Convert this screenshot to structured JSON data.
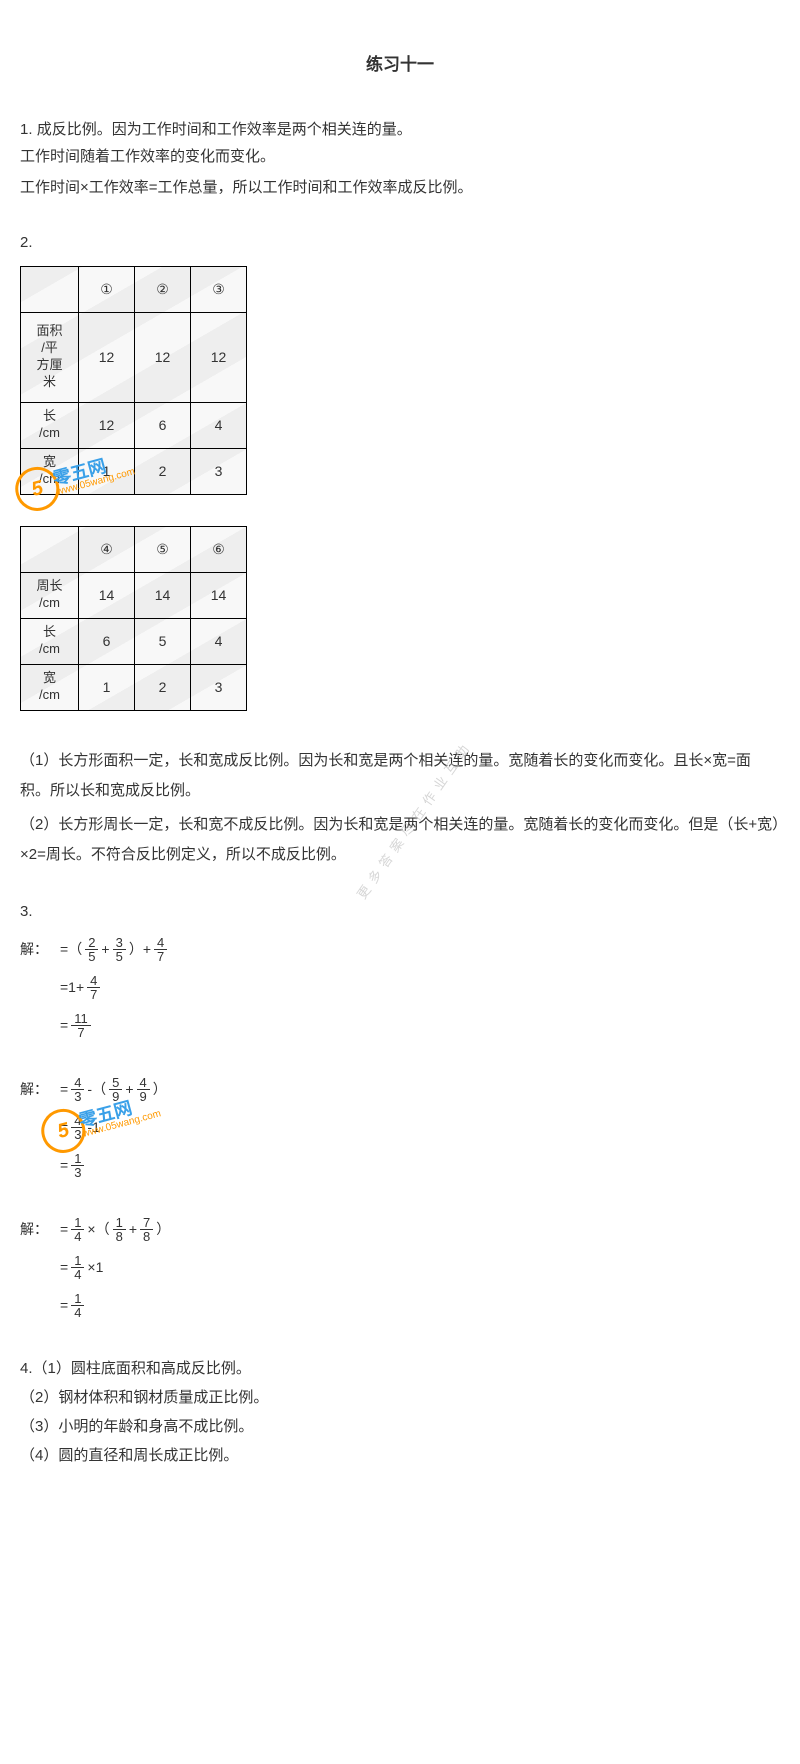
{
  "title": "练习十一",
  "q1": {
    "num": "1.",
    "lines": [
      "成反比例。因为工作时间和工作效率是两个相关连的量。",
      "工作时间随着工作效率的变化而变化。",
      "工作时间×工作效率=工作总量，所以工作时间和工作效率成反比例。"
    ]
  },
  "q2": {
    "num": "2.",
    "table1": {
      "colors": {
        "border": "#000000",
        "bg": "#f8f8f8"
      },
      "headers": [
        "",
        "①",
        "②",
        "③"
      ],
      "rows": [
        {
          "label": "面积/平方厘米",
          "cells": [
            "12",
            "12",
            "12"
          ],
          "tall": true
        },
        {
          "label": "长/cm",
          "cells": [
            "12",
            "6",
            "4"
          ]
        },
        {
          "label": "宽/cm",
          "cells": [
            "1",
            "2",
            "3"
          ]
        }
      ]
    },
    "table2": {
      "headers": [
        "",
        "④",
        "⑤",
        "⑥"
      ],
      "rows": [
        {
          "label": "周长/cm",
          "cells": [
            "14",
            "14",
            "14"
          ]
        },
        {
          "label": "长/cm",
          "cells": [
            "6",
            "5",
            "4"
          ]
        },
        {
          "label": "宽/cm",
          "cells": [
            "1",
            "2",
            "3"
          ]
        }
      ]
    },
    "expl": [
      "（1）长方形面积一定，长和宽成反比例。因为长和宽是两个相关连的量。宽随着长的变化而变化。且长×宽=面积。所以长和宽成反比例。",
      "（2）长方形周长一定，长和宽不成反比例。因为长和宽是两个相关连的量。宽随着长的变化而变化。但是（长+宽）×2=周长。不符合反比例定义，所以不成反比例。"
    ]
  },
  "q3": {
    "num": "3.",
    "solve_label": "解：",
    "eqs": [
      {
        "lines": [
          {
            "lead": "解：",
            "parts": [
              "=",
              "（",
              {
                "n": "2",
                "d": "5"
              },
              "+",
              {
                "n": "3",
                "d": "5"
              },
              "）",
              "+",
              {
                "n": "4",
                "d": "7"
              }
            ]
          },
          {
            "lead": "",
            "parts": [
              "=1+",
              {
                "n": "4",
                "d": "7"
              }
            ]
          },
          {
            "lead": "",
            "parts": [
              "=",
              {
                "n": "11",
                "d": "7"
              }
            ]
          }
        ]
      },
      {
        "lines": [
          {
            "lead": "解：",
            "parts": [
              "=",
              {
                "n": "4",
                "d": "3"
              },
              "-",
              "（",
              {
                "n": "5",
                "d": "9"
              },
              "+",
              {
                "n": "4",
                "d": "9"
              },
              "）"
            ]
          },
          {
            "lead": "",
            "parts": [
              "=",
              {
                "n": "4",
                "d": "3"
              },
              "-",
              "1"
            ]
          },
          {
            "lead": "",
            "parts": [
              "=",
              {
                "n": "1",
                "d": "3"
              }
            ]
          }
        ]
      },
      {
        "lines": [
          {
            "lead": "解：",
            "parts": [
              "=",
              {
                "n": "1",
                "d": "4"
              },
              "×",
              "（",
              {
                "n": "1",
                "d": "8"
              },
              "+",
              {
                "n": "7",
                "d": "8"
              },
              "）"
            ]
          },
          {
            "lead": "",
            "parts": [
              "=",
              {
                "n": "1",
                "d": "4"
              },
              "×",
              "1"
            ]
          },
          {
            "lead": "",
            "parts": [
              "=",
              {
                "n": "1",
                "d": "4"
              }
            ]
          }
        ]
      }
    ]
  },
  "q4": {
    "lines": [
      "4.（1）圆柱底面积和高成反比例。",
      "（2）钢材体积和钢材质量成正比例。",
      "（3）小明的年龄和身高不成比例。",
      "（4）圆的直径和周长成正比例。"
    ]
  },
  "watermark": {
    "circle_text": "5",
    "cn": "零五网",
    "url": "www.05wang.com",
    "page_wm": "更多答案尽在作业互助"
  }
}
